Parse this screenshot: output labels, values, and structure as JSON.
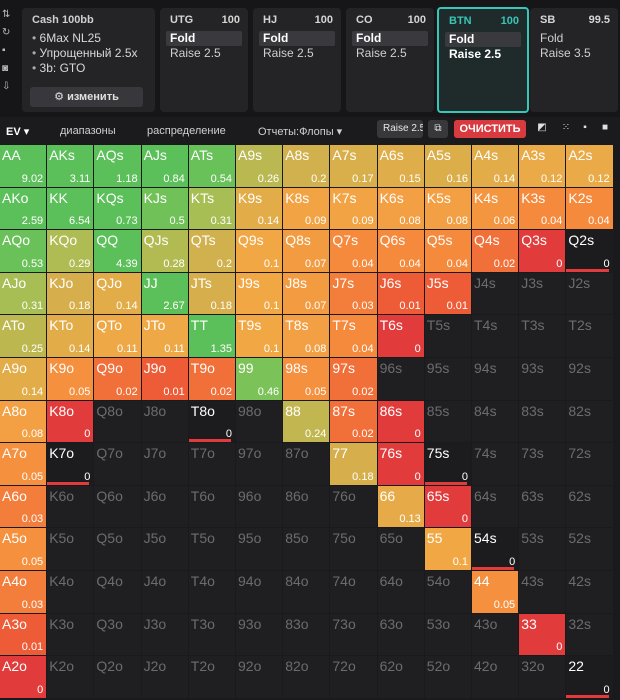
{
  "info": {
    "title": "Cash  100bb",
    "lines": [
      "6Max NL25",
      "Упрощенный 2.5x",
      "3b: GTO"
    ],
    "change_label": "изменить"
  },
  "positions": [
    {
      "name": "UTG",
      "stack": "100",
      "actions": [
        "Fold",
        "Raise 2.5"
      ],
      "selected": 0
    },
    {
      "name": "HJ",
      "stack": "100",
      "actions": [
        "Fold",
        "Raise 2.5"
      ],
      "selected": 0
    },
    {
      "name": "CO",
      "stack": "100",
      "actions": [
        "Fold",
        "Raise 2.5"
      ],
      "selected": 0
    },
    {
      "name": "BTN",
      "stack": "100",
      "actions": [
        "Fold",
        "Raise 2.5"
      ],
      "selected": 0,
      "active": true
    },
    {
      "name": "SB",
      "stack": "99.5",
      "actions": [
        "Fold",
        "Raise 3.5"
      ],
      "selected": -1
    }
  ],
  "toolbar": {
    "ev_label": "EV",
    "ranges_label": "диапазоны",
    "distribution_label": "распределение",
    "reports_label": "Отчеты:Флопы",
    "raise_label": "Raise 2.5",
    "clear_label": "ОЧИСТИТЬ"
  },
  "colors": {
    "accent_teal": "#37c6b7",
    "clear_red": "#d83a3f",
    "green": "#5cc05a",
    "orange": "#f58a3c",
    "red": "#e13b3b"
  },
  "ranks": [
    "A",
    "K",
    "Q",
    "J",
    "T",
    "9",
    "8",
    "7",
    "6",
    "5",
    "4",
    "3",
    "2"
  ],
  "grid": [
    [
      "AA 9.02",
      "AKs 3.11",
      "AQs 1.18",
      "AJs 0.84",
      "ATs 0.54",
      "A9s 0.26",
      "A8s 0.2",
      "A7s 0.17",
      "A6s 0.15",
      "A5s 0.16",
      "A4s 0.14",
      "A3s 0.12",
      "A2s 0.12"
    ],
    [
      "AKo 2.59",
      "KK 6.54",
      "KQs 0.73",
      "KJs 0.5",
      "KTs 0.31",
      "K9s 0.14",
      "K8s 0.09",
      "K7s 0.09",
      "K6s 0.08",
      "K5s 0.08",
      "K4s 0.06",
      "K3s 0.04",
      "K2s 0.04"
    ],
    [
      "AQo 0.53",
      "KQo 0.29",
      "QQ 4.39",
      "QJs 0.28",
      "QTs 0.2",
      "Q9s 0.1",
      "Q8s 0.07",
      "Q7s 0.04",
      "Q6s 0.04",
      "Q5s 0.04",
      "Q4s 0.02",
      "Q3s 0",
      "Q2s 0"
    ],
    [
      "AJo 0.31",
      "KJo 0.18",
      "QJo 0.14",
      "JJ 2.67",
      "JTs 0.18",
      "J9s 0.1",
      "J8s 0.07",
      "J7s 0.03",
      "J6s 0.01",
      "J5s 0.01",
      "J4s",
      "J3s",
      "J2s"
    ],
    [
      "ATo 0.25",
      "KTo 0.14",
      "QTo 0.11",
      "JTo 0.11",
      "TT 1.35",
      "T9s 0.1",
      "T8s 0.08",
      "T7s 0.04",
      "T6s 0",
      "T5s",
      "T4s",
      "T3s",
      "T2s"
    ],
    [
      "A9o 0.14",
      "K9o 0.05",
      "Q9o 0.02",
      "J9o 0.01",
      "T9o 0.02",
      "99 0.46",
      "98s 0.05",
      "97s 0.02",
      "96s",
      "95s",
      "94s",
      "93s",
      "92s"
    ],
    [
      "A8o 0.08",
      "K8o 0",
      "Q8o",
      "J8o",
      "T8o 0",
      "98o",
      "88 0.24",
      "87s 0.02",
      "86s 0",
      "85s",
      "84s",
      "83s",
      "82s"
    ],
    [
      "A7o 0.05",
      "K7o 0",
      "Q7o",
      "J7o",
      "T7o",
      "97o",
      "87o",
      "77 0.18",
      "76s 0",
      "75s 0",
      "74s",
      "73s",
      "72s"
    ],
    [
      "A6o 0.03",
      "K6o",
      "Q6o",
      "J6o",
      "T6o",
      "96o",
      "86o",
      "76o",
      "66 0.13",
      "65s 0",
      "64s",
      "63s",
      "62s"
    ],
    [
      "A5o 0.05",
      "K5o",
      "Q5o",
      "J5o",
      "T5o",
      "95o",
      "85o",
      "75o",
      "65o",
      "55 0.1",
      "54s 0",
      "53s",
      "52s"
    ],
    [
      "A4o 0.03",
      "K4o",
      "Q4o",
      "J4o",
      "T4o",
      "94o",
      "84o",
      "74o",
      "64o",
      "54o",
      "44 0.05",
      "43s",
      "42s"
    ],
    [
      "A3o 0.01",
      "K3o",
      "Q3o",
      "J3o",
      "T3o",
      "93o",
      "83o",
      "73o",
      "63o",
      "53o",
      "43o",
      "33 0",
      "32s"
    ],
    [
      "A2o 0",
      "K2o",
      "Q2o",
      "J2o",
      "T2o",
      "92o",
      "82o",
      "72o",
      "62o",
      "52o",
      "42o",
      "32o",
      "22 0"
    ]
  ]
}
